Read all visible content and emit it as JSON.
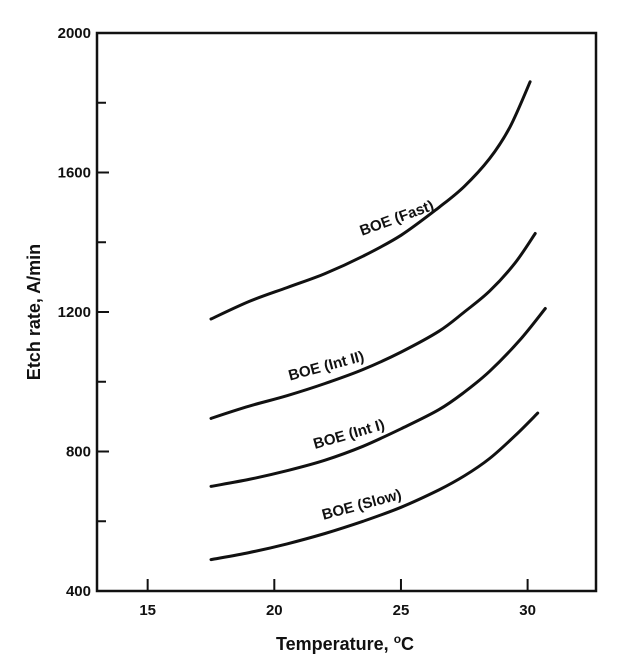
{
  "chart_data": {
    "type": "line",
    "xlabel": "Temperature,",
    "xlabel_unit_sup": "o",
    "xlabel_unit": "C",
    "ylabel": "Etch rate, A/min",
    "xlim": [
      13,
      32.7
    ],
    "ylim": [
      400,
      2000
    ],
    "x_ticks": [
      15,
      20,
      25,
      30
    ],
    "y_ticks": [
      400,
      800,
      1200,
      1600,
      2000
    ],
    "y_minor_ticks": [
      600,
      1000,
      1400,
      1800
    ],
    "grid": false,
    "legend": "none",
    "series": [
      {
        "name": "BOE (Fast)",
        "x": [
          17.5,
          19,
          20.5,
          22,
          23.5,
          25,
          26.5,
          27.5,
          28.5,
          29.3,
          30.1
        ],
        "y": [
          1180,
          1230,
          1270,
          1310,
          1360,
          1420,
          1500,
          1560,
          1640,
          1730,
          1860
        ]
      },
      {
        "name": "BOE (Int II)",
        "x": [
          17.5,
          19,
          20.5,
          22,
          23.5,
          25,
          26.5,
          27.5,
          28.5,
          29.5,
          30.3
        ],
        "y": [
          895,
          930,
          960,
          995,
          1035,
          1085,
          1145,
          1200,
          1260,
          1340,
          1425
        ]
      },
      {
        "name": "BOE (Int I)",
        "x": [
          17.5,
          19,
          20.5,
          22,
          23.5,
          25,
          26.5,
          27.5,
          28.5,
          29.7,
          30.7
        ],
        "y": [
          700,
          720,
          745,
          775,
          815,
          865,
          920,
          970,
          1030,
          1120,
          1210
        ]
      },
      {
        "name": "BOE (Slow)",
        "x": [
          17.5,
          19,
          20.5,
          22,
          23.5,
          25,
          26.5,
          27.5,
          28.5,
          29.5,
          30.4
        ],
        "y": [
          490,
          510,
          535,
          565,
          600,
          640,
          690,
          730,
          780,
          845,
          910
        ]
      }
    ]
  }
}
